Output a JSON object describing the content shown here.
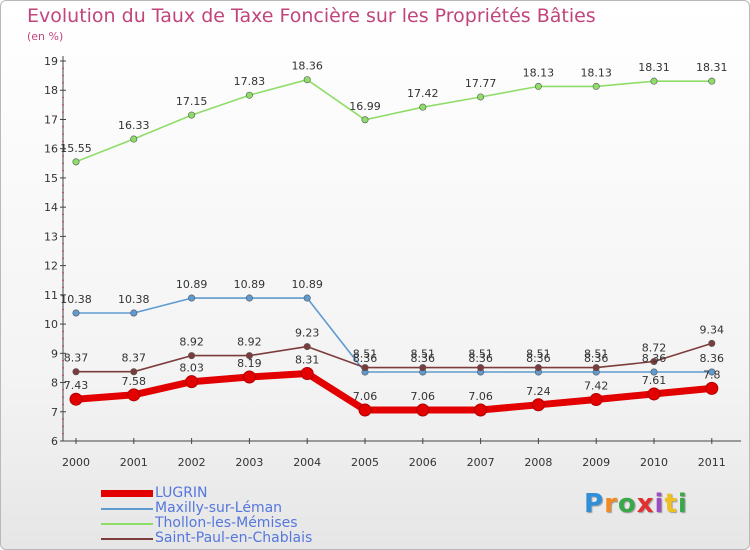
{
  "title": "Evolution du Taux de Taxe Foncière sur les Propriétés Bâties",
  "subtitle": "(en %)",
  "logo_text": "Proxiti",
  "chart_data": {
    "type": "line",
    "title": "Evolution du Taux de Taxe Foncière sur les Propriétés Bâties",
    "ylabel": "(en %)",
    "xlabel": "",
    "ylim": [
      6,
      19
    ],
    "yticks": [
      "6",
      "7",
      "8",
      "9",
      "10",
      "11",
      "12",
      "13",
      "14",
      "15",
      "16",
      "17",
      "18",
      "19"
    ],
    "grid": false,
    "legend_position": "bottom-left",
    "categories": [
      "2000",
      "2001",
      "2002",
      "2003",
      "2004",
      "2005",
      "2006",
      "2007",
      "2008",
      "2009",
      "2010",
      "2011"
    ],
    "series": [
      {
        "name": "LUGRIN",
        "color": "#e20000",
        "values": [
          7.43,
          7.58,
          8.03,
          8.19,
          8.31,
          7.06,
          7.06,
          7.06,
          7.24,
          7.42,
          7.61,
          7.8
        ],
        "labels": [
          "7.43",
          "7.58",
          "8.03",
          "8.19",
          "8.31",
          "7.06",
          "7.06",
          "7.06",
          "7.24",
          "7.42",
          "7.61",
          "7.8"
        ]
      },
      {
        "name": "Maxilly-sur-Léman",
        "color": "#5f9bd0",
        "values": [
          10.38,
          10.38,
          10.89,
          10.89,
          10.89,
          8.36,
          8.36,
          8.36,
          8.36,
          8.36,
          8.36,
          8.36
        ],
        "labels": [
          "10.38",
          "10.38",
          "10.89",
          "10.89",
          "10.89",
          "8.36",
          "8.36",
          "8.36",
          "8.36",
          "8.36",
          "8.36",
          "8.36"
        ]
      },
      {
        "name": "Thollon-les-Mémises",
        "color": "#8fdd69",
        "values": [
          15.55,
          16.33,
          17.15,
          17.83,
          18.36,
          16.99,
          17.42,
          17.77,
          18.13,
          18.13,
          18.31,
          18.31
        ],
        "labels": [
          "15.55",
          "16.33",
          "17.15",
          "17.83",
          "18.36",
          "16.99",
          "17.42",
          "17.77",
          "18.13",
          "18.13",
          "18.31",
          "18.31"
        ]
      },
      {
        "name": "Saint-Paul-en-Chablais",
        "color": "#7d3c3c",
        "values": [
          8.37,
          8.37,
          8.92,
          8.92,
          9.23,
          8.51,
          8.51,
          8.51,
          8.51,
          8.51,
          8.72,
          9.34
        ],
        "labels": [
          "8.37",
          "8.37",
          "8.92",
          "8.92",
          "9.23",
          "8.51",
          "8.51",
          "8.51",
          "8.51",
          "8.51",
          "8.72",
          "9.34"
        ]
      }
    ]
  }
}
